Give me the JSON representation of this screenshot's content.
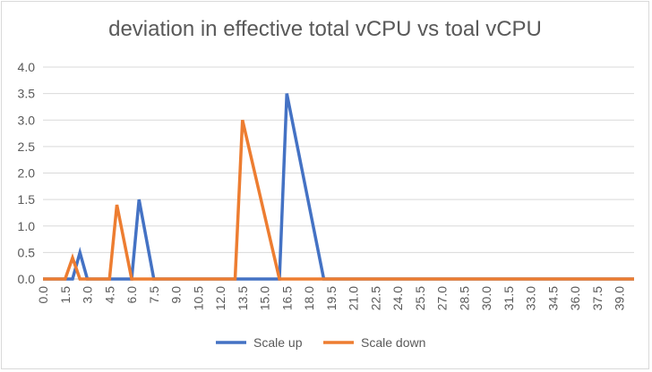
{
  "chart_data": {
    "type": "line",
    "title": "deviation in effective total vCPU vs toal vCPU",
    "xlabel": "",
    "ylabel": "",
    "ylim": [
      0,
      4
    ],
    "y_ticks": [
      "0.0",
      "0.5",
      "1.0",
      "1.5",
      "2.0",
      "2.5",
      "3.0",
      "3.5",
      "4.0"
    ],
    "x": [
      0.0,
      0.5,
      1.0,
      1.5,
      2.0,
      2.5,
      3.0,
      3.5,
      4.0,
      4.5,
      5.0,
      5.5,
      6.0,
      6.5,
      7.0,
      7.5,
      8.0,
      8.5,
      9.0,
      9.5,
      10.0,
      10.5,
      11.0,
      11.5,
      12.0,
      12.5,
      13.0,
      13.5,
      14.0,
      14.5,
      15.0,
      15.5,
      16.0,
      16.5,
      17.0,
      17.5,
      18.0,
      18.5,
      19.0,
      19.5,
      20.0,
      20.5,
      21.0,
      21.5,
      22.0,
      22.5,
      23.0,
      23.5,
      24.0,
      24.5,
      25.0,
      25.5,
      26.0,
      26.5,
      27.0,
      27.5,
      28.0,
      28.5,
      29.0,
      29.5,
      30.0,
      30.5,
      31.0,
      31.5,
      32.0,
      32.5,
      33.0,
      33.5,
      34.0,
      34.5,
      35.0,
      35.5,
      36.0,
      36.5,
      37.0,
      37.5,
      38.0,
      38.5,
      39.0,
      39.5,
      40.0
    ],
    "x_tick_labels": [
      "0.0",
      "1.5",
      "3.0",
      "4.5",
      "6.0",
      "7.5",
      "9.0",
      "10.5",
      "12.0",
      "13.5",
      "15.0",
      "16.5",
      "18.0",
      "19.5",
      "21.0",
      "22.5",
      "24.0",
      "25.5",
      "27.0",
      "28.5",
      "30.0",
      "31.5",
      "33.0",
      "34.5",
      "36.0",
      "37.5",
      "39.0"
    ],
    "series": [
      {
        "name": "Scale up",
        "color": "#4472c4",
        "values": [
          0,
          0,
          0,
          0,
          0,
          0.5,
          0,
          0,
          0,
          0,
          0,
          0,
          0,
          1.5,
          0.75,
          0,
          0,
          0,
          0,
          0,
          0,
          0,
          0,
          0,
          0,
          0,
          0,
          0,
          0,
          0,
          0,
          0,
          0,
          3.5,
          2.8,
          2.1,
          1.4,
          0.7,
          0,
          0,
          0,
          0,
          0,
          0,
          0,
          0,
          0,
          0,
          0,
          0,
          0,
          0,
          0,
          0,
          0,
          0,
          0,
          0,
          0,
          0,
          0,
          0,
          0,
          0,
          0,
          0,
          0,
          0,
          0,
          0,
          0,
          0,
          0,
          0,
          0,
          0,
          0,
          0,
          0,
          0,
          0
        ]
      },
      {
        "name": "Scale down",
        "color": "#ed7d31",
        "values": [
          0,
          0,
          0,
          0,
          0.4,
          0,
          0,
          0,
          0,
          0,
          1.4,
          0.7,
          0,
          0,
          0,
          0,
          0,
          0,
          0,
          0,
          0,
          0,
          0,
          0,
          0,
          0,
          0,
          3.0,
          2.4,
          1.8,
          1.2,
          0.6,
          0,
          0,
          0,
          0,
          0,
          0,
          0,
          0,
          0,
          0,
          0,
          0,
          0,
          0,
          0,
          0,
          0,
          0,
          0,
          0,
          0,
          0,
          0,
          0,
          0,
          0,
          0,
          0,
          0,
          0,
          0,
          0,
          0,
          0,
          0,
          0,
          0,
          0,
          0,
          0,
          0,
          0,
          0,
          0,
          0,
          0,
          0,
          0,
          0
        ]
      }
    ],
    "grid": true,
    "legend_position": "bottom"
  }
}
